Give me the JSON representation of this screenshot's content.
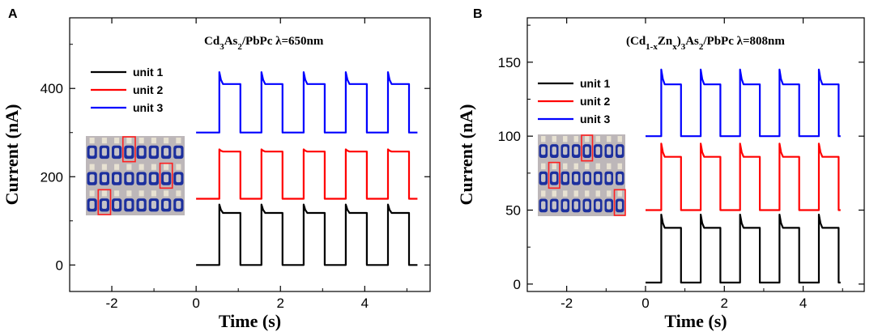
{
  "chart_data": [
    {
      "panel": "A",
      "type": "line",
      "title_parts": [
        {
          "text": "Cd",
          "sub": false
        },
        {
          "text": "3",
          "sub": true
        },
        {
          "text": "As",
          "sub": false
        },
        {
          "text": "2",
          "sub": true
        },
        {
          "text": "/PbPc   λ=650nm",
          "sub": false
        }
      ],
      "title_plain": "Cd3As2/PbPc λ=650nm",
      "xlabel": "Time (s)",
      "ylabel": "Current (nA)",
      "xlim": [
        -3.0,
        5.55
      ],
      "ylim": [
        -60,
        560
      ],
      "xticks": [
        -2,
        0,
        2,
        4
      ],
      "yticks": [
        0,
        200,
        400
      ],
      "pulse_starts": [
        0.55,
        1.55,
        2.55,
        3.55,
        4.55
      ],
      "on_duration": 0.5,
      "x_start": 0.0,
      "x_end": 5.25,
      "series": [
        {
          "name": "unit 1",
          "color": "#000000",
          "baseline": 0,
          "peak": 137,
          "plateau": 118
        },
        {
          "name": "unit 2",
          "color": "#ff0000",
          "baseline": 150,
          "peak": 262,
          "plateau": 257
        },
        {
          "name": "unit 3",
          "color": "#0000ff",
          "baseline": 300,
          "peak": 437,
          "plateau": 410
        }
      ],
      "inset_highlight_cells": [
        [
          0,
          3
        ],
        [
          1,
          6
        ],
        [
          2,
          1
        ]
      ]
    },
    {
      "panel": "B",
      "type": "line",
      "title_parts": [
        {
          "text": "(Cd",
          "sub": false
        },
        {
          "text": "1-x",
          "sub": true
        },
        {
          "text": "Zn",
          "sub": false
        },
        {
          "text": "x",
          "sub": true
        },
        {
          "text": ")",
          "sub": false
        },
        {
          "text": "3",
          "sub": true
        },
        {
          "text": "As",
          "sub": false
        },
        {
          "text": "2",
          "sub": true
        },
        {
          "text": "/PbPc   λ=808nm",
          "sub": false
        }
      ],
      "title_plain": "(Cd1-xZnx)3As2/PbPc λ=808nm",
      "xlabel": "Time (s)",
      "ylabel": "Current (nA)",
      "xlim": [
        -3.0,
        5.55
      ],
      "ylim": [
        -5,
        180
      ],
      "xticks": [
        -2,
        0,
        2,
        4
      ],
      "yticks": [
        0,
        50,
        100,
        150
      ],
      "pulse_starts": [
        0.4,
        1.4,
        2.4,
        3.4,
        4.4
      ],
      "on_duration": 0.5,
      "x_start": 0.0,
      "x_end": 4.95,
      "series": [
        {
          "name": "unit 1",
          "color": "#000000",
          "baseline": 1,
          "peak": 47,
          "plateau": 38
        },
        {
          "name": "unit 2",
          "color": "#ff0000",
          "baseline": 50,
          "peak": 95,
          "plateau": 86
        },
        {
          "name": "unit 3",
          "color": "#0000ff",
          "baseline": 100,
          "peak": 145,
          "plateau": 135
        }
      ],
      "inset_highlight_cells": [
        [
          0,
          4
        ],
        [
          1,
          1
        ],
        [
          2,
          7
        ]
      ]
    }
  ]
}
